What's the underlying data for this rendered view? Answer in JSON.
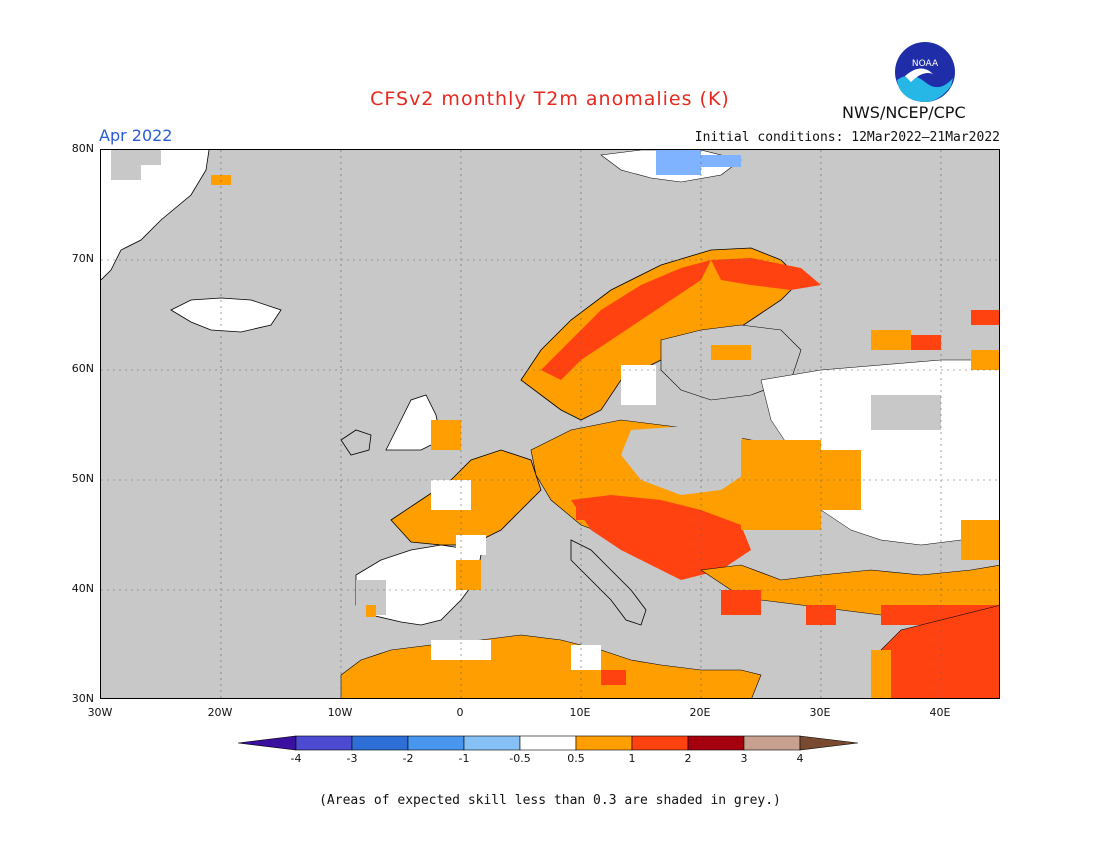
{
  "title": "CFSv2 monthly T2m anomalies (K)",
  "month_label": "Apr 2022",
  "initial_conditions": "Initial conditions: 12Mar2022–21Mar2022",
  "agency": "NWS/NCEP/CPC",
  "logo_text": "NOAA",
  "footnote": "(Areas of expected skill less than 0.3 are shaded in grey.)",
  "axes": {
    "lat_labels": [
      "80N",
      "70N",
      "60N",
      "50N",
      "40N",
      "30N"
    ],
    "lon_labels": [
      "30W",
      "20W",
      "10W",
      "0",
      "10E",
      "20E",
      "30E",
      "40E"
    ]
  },
  "colorbar": {
    "labels": [
      "-4",
      "-3",
      "-2",
      "-1",
      "-0.5",
      "0.5",
      "1",
      "2",
      "3",
      "4"
    ],
    "colors": [
      "#3b0fa0",
      "#4b4ad0",
      "#2d6fd6",
      "#4896ee",
      "#86c0f4",
      "#ffffff",
      "#ff9e00",
      "#ff4210",
      "#a5000e",
      "#c8a090",
      "#7a4a30"
    ]
  },
  "colors": {
    "ocean_skill_grey": "#c8c8c8",
    "title_red": "#e8281e",
    "month_blue": "#2a5bd7",
    "anomaly_orange": "#ff9e00",
    "anomaly_red": "#ff4210",
    "anomaly_white": "#ffffff",
    "anomaly_lightblue": "#7fb2ff"
  }
}
